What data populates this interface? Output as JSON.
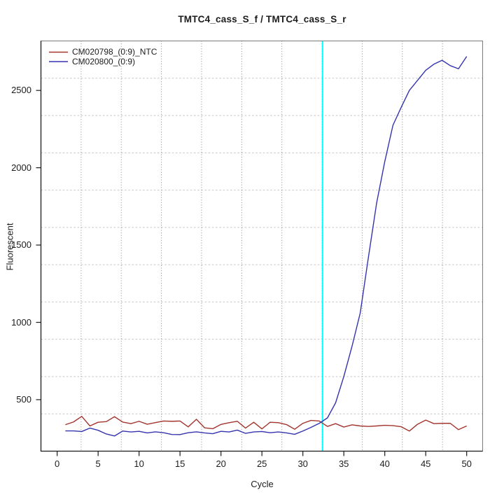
{
  "chart_data": {
    "type": "line",
    "title": "TMTC4_cass_S_f / TMTC4_cass_S_r",
    "xlabel": "Cycle",
    "ylabel": "Fluorescent",
    "xlim": [
      -1.98,
      51.95
    ],
    "ylim": [
      167,
      2820
    ],
    "x_ticks": [
      0,
      5,
      10,
      15,
      20,
      25,
      30,
      35,
      40,
      45,
      50
    ],
    "y_ticks": [
      500,
      1000,
      1500,
      2000,
      2500
    ],
    "grid": {
      "style": "dotted",
      "divisions_x": 11,
      "divisions_y": 11,
      "h_color": "#c6c6c6",
      "v_color": "#8a8a8a"
    },
    "legend_position": "top-left",
    "threshold_line": {
      "x": 32.4,
      "color": "#00ffff",
      "label": "threshold-cycle-line"
    },
    "x": [
      1,
      2,
      3,
      4,
      5,
      6,
      7,
      8,
      9,
      10,
      11,
      12,
      13,
      14,
      15,
      16,
      17,
      18,
      19,
      20,
      21,
      22,
      23,
      24,
      25,
      26,
      27,
      28,
      29,
      30,
      31,
      32,
      33,
      34,
      35,
      36,
      37,
      38,
      39,
      40,
      41,
      42,
      43,
      44,
      45,
      46,
      47,
      48,
      49,
      50
    ],
    "series": [
      {
        "name": "CM020798_(0:9)_NTC",
        "color": "#a2352e",
        "values": [
          338,
          356,
          392,
          330,
          354,
          358,
          390,
          355,
          345,
          360,
          341,
          352,
          362,
          360,
          362,
          324,
          373,
          318,
          312,
          340,
          351,
          360,
          316,
          354,
          311,
          354,
          351,
          339,
          309,
          347,
          366,
          362,
          327,
          345,
          323,
          337,
          330,
          327,
          330,
          334,
          332,
          325,
          297,
          341,
          368,
          345,
          347,
          347,
          306,
          330
        ]
      },
      {
        "name": "CM020800_(0:9)",
        "color": "#3434ae",
        "values": [
          298,
          298,
          294,
          316,
          302,
          278,
          265,
          297,
          291,
          295,
          285,
          292,
          286,
          275,
          274,
          286,
          292,
          285,
          280,
          295,
          291,
          303,
          282,
          291,
          294,
          286,
          291,
          285,
          276,
          297,
          321,
          347,
          382,
          480,
          650,
          845,
          1060,
          1420,
          1770,
          2040,
          2275,
          2390,
          2500,
          2565,
          2630,
          2670,
          2695,
          2660,
          2640,
          2720
        ]
      }
    ]
  },
  "axis": {
    "line_color": "#1a1a1a",
    "box_color": "#7a7a7a"
  }
}
